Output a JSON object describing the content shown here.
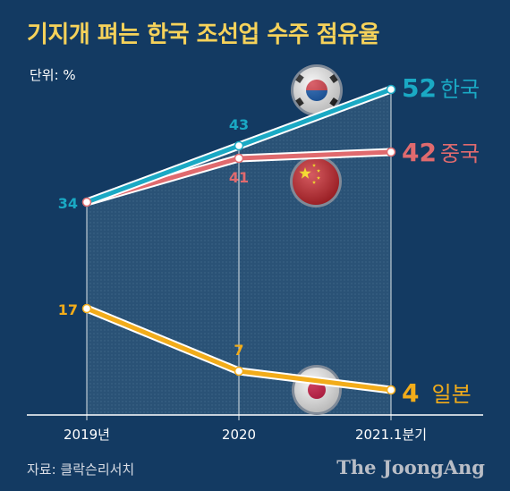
{
  "title": "기지개 펴는 한국 조선업 수주 점유율",
  "unit_label": "단위: %",
  "source": "자료: 클락슨리서치",
  "brand": "The JoongAng",
  "chart_data": {
    "type": "line",
    "categories": [
      "2019년",
      "2020",
      "2021.1분기"
    ],
    "series": [
      {
        "name": "한국",
        "values": [
          34,
          43,
          52
        ],
        "color": "#1aa9c4",
        "label_color": "#1aa9c4",
        "flag": "korea-flag-icon"
      },
      {
        "name": "중국",
        "values": [
          34,
          41,
          42
        ],
        "color": "#e06a6e",
        "label_color": "#e06a6e",
        "flag": "china-flag-icon"
      },
      {
        "name": "일본",
        "values": [
          17,
          7,
          4
        ],
        "color": "#f2ac1a",
        "label_color": "#f2ac1a",
        "flag": "japan-flag-icon"
      }
    ],
    "point_labels": [
      {
        "series": 0,
        "index": 0,
        "text": "34"
      },
      {
        "series": 0,
        "index": 1,
        "text": "43"
      },
      {
        "series": 1,
        "index": 1,
        "text": "41"
      },
      {
        "series": 2,
        "index": 0,
        "text": "17"
      },
      {
        "series": 2,
        "index": 1,
        "text": "7"
      }
    ],
    "end_labels": [
      {
        "series": 0,
        "value": "52",
        "name": "한국"
      },
      {
        "series": 1,
        "value": "42",
        "name": "중국"
      },
      {
        "series": 2,
        "value": "4",
        "name": "일본"
      }
    ],
    "ylim": [
      0,
      60
    ],
    "xlabel": "",
    "ylabel": ""
  }
}
